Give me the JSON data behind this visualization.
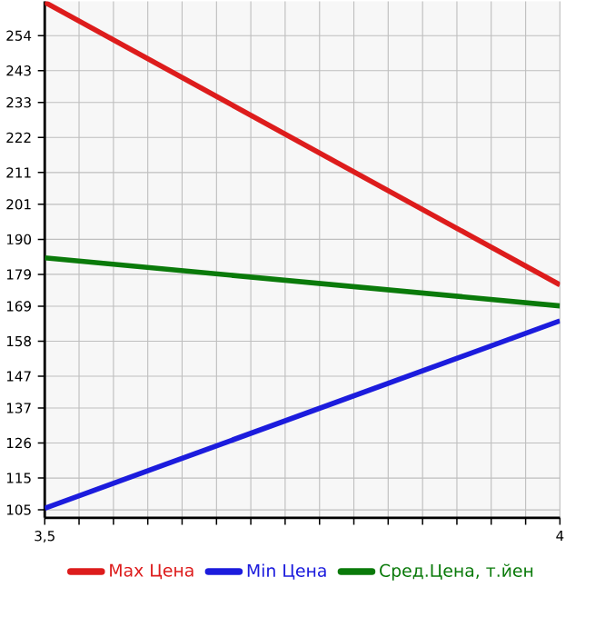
{
  "chart_data": {
    "type": "line",
    "x": [
      3.5,
      4
    ],
    "series": [
      {
        "name": "Max Цена",
        "color": "#dd1c1c",
        "values": [
          264.5,
          175.7
        ]
      },
      {
        "name": "Min Цена",
        "color": "#1c1cdd",
        "values": [
          105.5,
          164.4
        ]
      },
      {
        "name": "Сред.Цена, т.йен",
        "color": "#0a7a0a",
        "values": [
          184.2,
          169.1
        ]
      }
    ],
    "xlim": [
      3.5,
      4
    ],
    "xticks": [
      {
        "value": 3.5,
        "label": "3,5"
      },
      {
        "value": 3.5333,
        "label": null
      },
      {
        "value": 3.5667,
        "label": null
      },
      {
        "value": 3.6,
        "label": null
      },
      {
        "value": 3.6333,
        "label": null
      },
      {
        "value": 3.6667,
        "label": null
      },
      {
        "value": 3.7,
        "label": null
      },
      {
        "value": 3.7333,
        "label": null
      },
      {
        "value": 3.7667,
        "label": null
      },
      {
        "value": 3.8,
        "label": null
      },
      {
        "value": 3.8333,
        "label": null
      },
      {
        "value": 3.8667,
        "label": null
      },
      {
        "value": 3.9,
        "label": null
      },
      {
        "value": 3.9333,
        "label": null
      },
      {
        "value": 3.9667,
        "label": null
      },
      4
    ],
    "ylim": [
      102.5,
      264.8
    ],
    "yticks": [
      105,
      115,
      126,
      137,
      147,
      158,
      169,
      179,
      190,
      201,
      211,
      222,
      233,
      243,
      254
    ],
    "grid": true,
    "legend": "bottom",
    "marker": "none",
    "line_style": "solid"
  }
}
